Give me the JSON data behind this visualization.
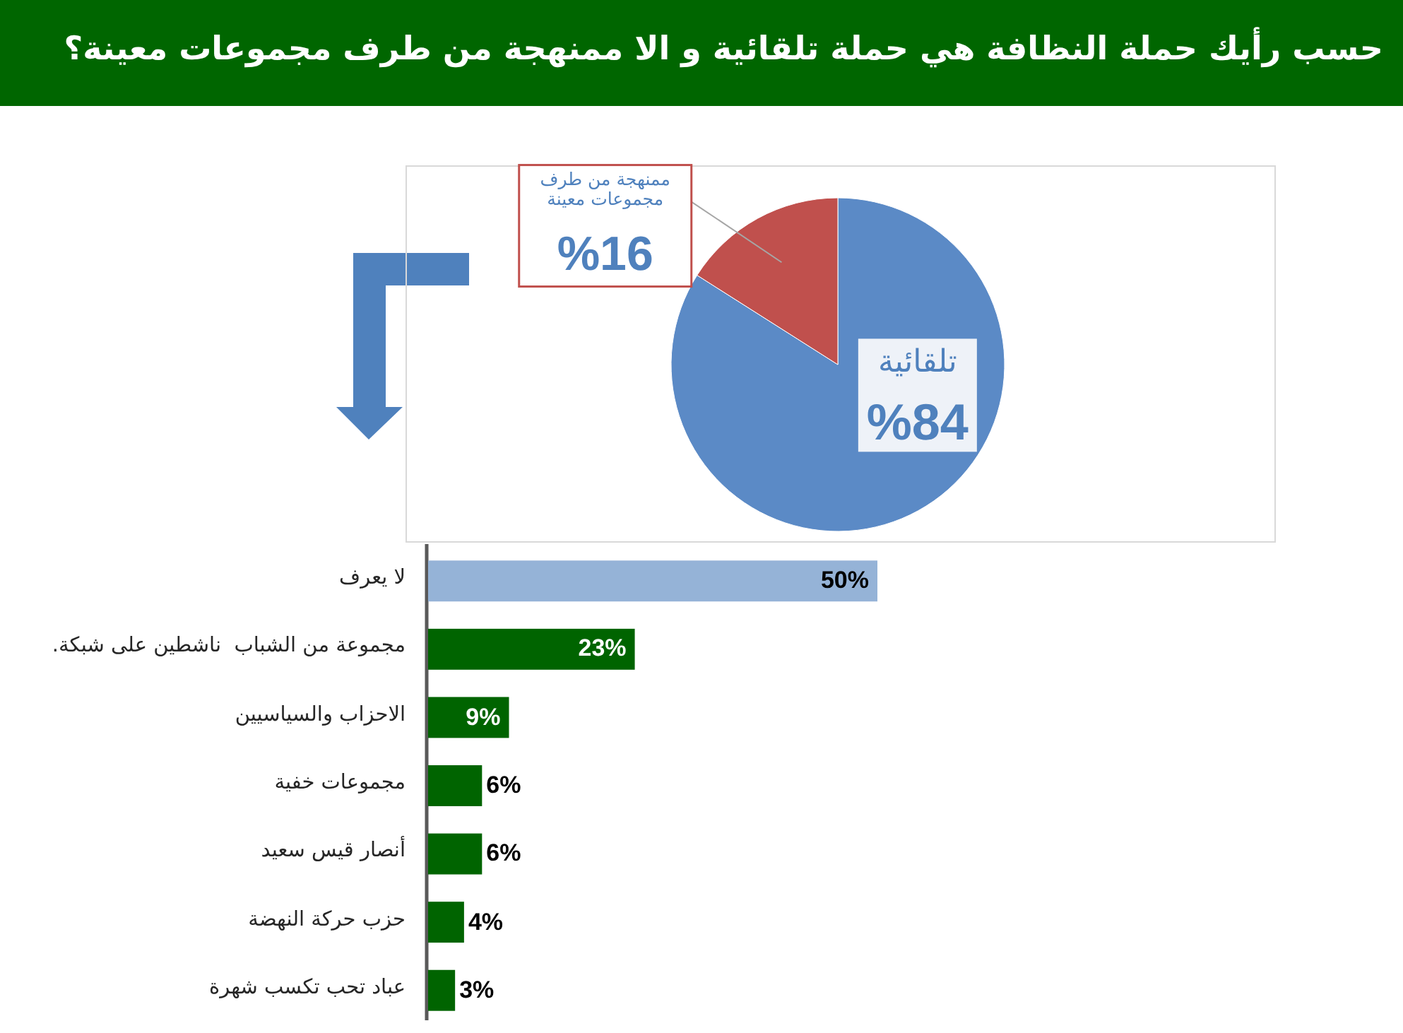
{
  "chart_data": [
    {
      "type": "pie",
      "title": "حسب رأيك حملة النظافة هي حملة تلقائية و الا ممنهجة من طرف مجموعات معينة؟",
      "categories": [
        "تلقائية",
        "ممنهجة من طرف مجموعات معينة"
      ],
      "values": [
        84,
        16
      ],
      "colors": [
        "#5b8ac6",
        "#c0504d"
      ],
      "value_labels": [
        "%84",
        "%16"
      ]
    },
    {
      "type": "bar",
      "orientation": "horizontal",
      "categories": [
        "لا يعرف",
        "مجموعة من الشباب  ناشطين على شبكة.",
        "الاحزاب والسياسيين",
        "مجموعات خفية",
        "أنصار قيس سعيد",
        "حزب حركة النهضة",
        "عباد تحب تكسب شهرة"
      ],
      "values": [
        50,
        23,
        9,
        6,
        6,
        4,
        3
      ],
      "colors": [
        "#95b3d7",
        "#006400",
        "#006400",
        "#006400",
        "#006400",
        "#006400",
        "#006400"
      ],
      "value_labels": [
        "50%",
        "23%",
        "9%",
        "6%",
        "6%",
        "4%",
        "3%"
      ]
    }
  ]
}
